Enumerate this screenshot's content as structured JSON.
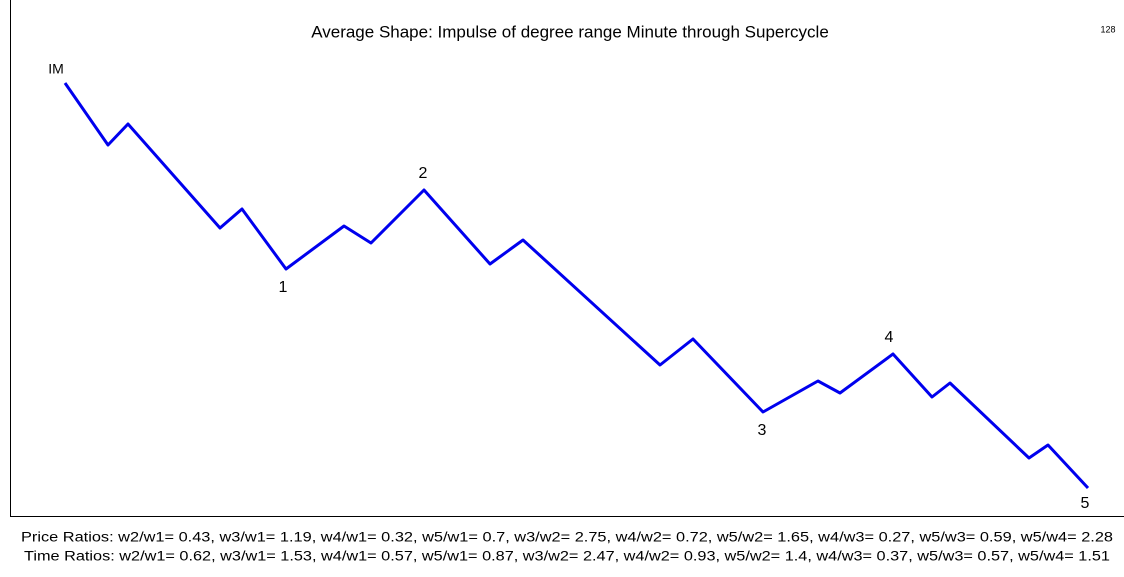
{
  "header": {
    "title": "Average Shape: Impulse of degree range Minute through Supercycle",
    "corner": "128"
  },
  "wave_labels": [
    "IM",
    "1",
    "2",
    "3",
    "4",
    "5"
  ],
  "footer": {
    "price_ratios": "Price Ratios: w2/w1= 0.43, w3/w1= 1.19, w4/w1= 0.32, w5/w1= 0.7, w3/w2= 2.75, w4/w2= 0.72, w5/w2= 1.65, w4/w3= 0.27, w5/w3= 0.59, w5/w4= 2.28",
    "time_ratios": "Time Ratios: w2/w1= 0.62, w3/w1= 1.53, w4/w1= 0.57, w5/w1= 0.87, w3/w2= 2.47, w4/w2= 0.93, w5/w2= 1.4, w4/w3= 0.37, w5/w3= 0.57, w5/w4= 1.51"
  }
}
